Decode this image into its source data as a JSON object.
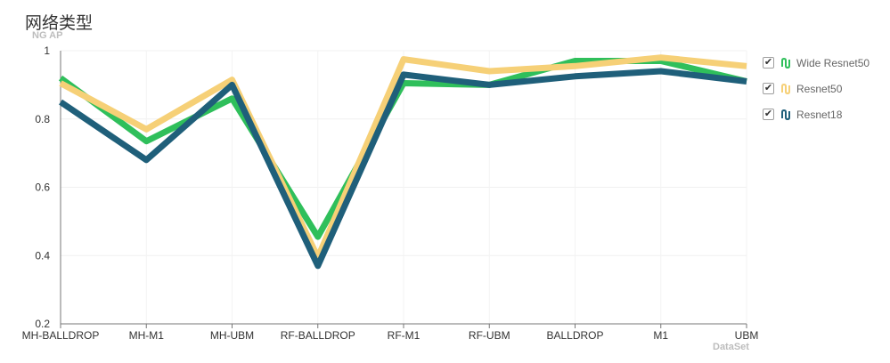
{
  "chart_data": {
    "type": "line",
    "title": "网络类型",
    "ylabel": "NG AP",
    "xlabel": "DataSet",
    "categories": [
      "MH-BALLDROP",
      "MH-M1",
      "MH-UBM",
      "RF-BALLDROP",
      "RF-M1",
      "RF-UBM",
      "BALLDROP",
      "M1",
      "UBM"
    ],
    "ylim": [
      0.2,
      1
    ],
    "yticks": [
      "0.2",
      "0.4",
      "0.6",
      "0.8",
      "1"
    ],
    "grid": true,
    "legend_position": "right",
    "series": [
      {
        "name": "Wide Resnet50",
        "color": "#2fbf5b",
        "values": [
          0.92,
          0.735,
          0.86,
          0.455,
          0.905,
          0.9,
          0.97,
          0.97,
          0.91
        ]
      },
      {
        "name": "Resnet50",
        "color": "#f6d077",
        "values": [
          0.905,
          0.77,
          0.915,
          0.395,
          0.975,
          0.94,
          0.955,
          0.98,
          0.955
        ]
      },
      {
        "name": "Resnet18",
        "color": "#1f5f7a",
        "values": [
          0.85,
          0.68,
          0.9,
          0.37,
          0.93,
          0.9,
          0.925,
          0.94,
          0.91
        ]
      }
    ]
  },
  "legend_check_glyph": "✔",
  "legend_icon": "line-series-icon"
}
